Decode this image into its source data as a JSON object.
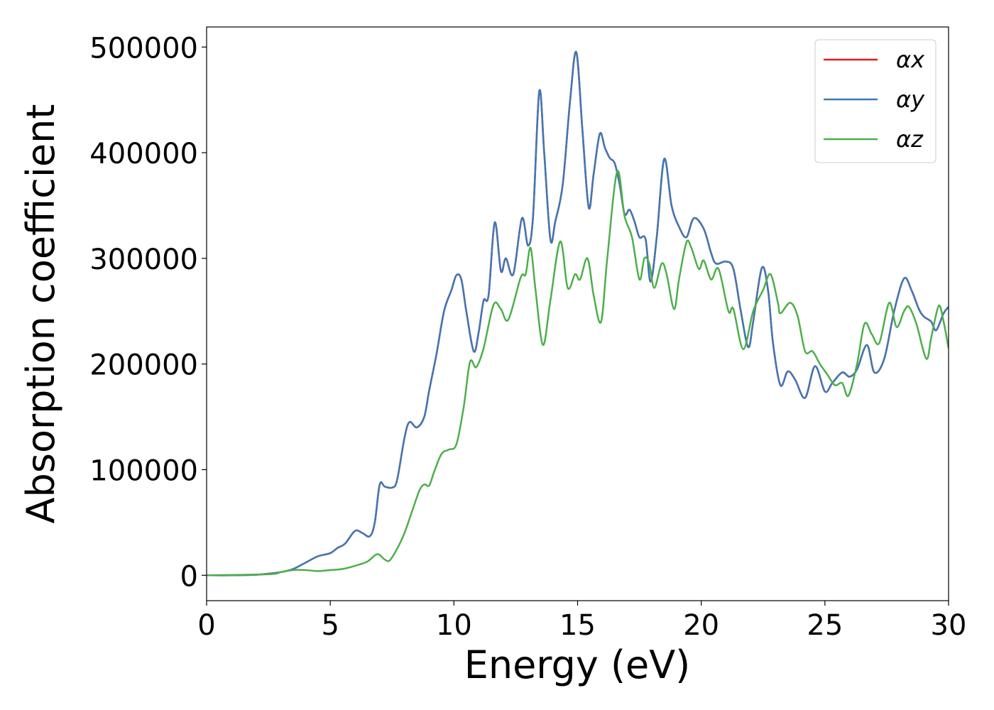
{
  "chart_data": {
    "type": "line",
    "xlabel": "Energy (eV)",
    "ylabel": "Absorption coefficient",
    "xlim": [
      0,
      30
    ],
    "ylim": [
      -24000,
      519000
    ],
    "xticks": [
      0,
      5,
      10,
      15,
      20,
      25,
      30
    ],
    "yticks": [
      0,
      100000,
      200000,
      300000,
      400000,
      500000
    ],
    "legend": "upper right",
    "series": [
      {
        "name": "αx",
        "color": "#e41a1c",
        "x": [
          0,
          1,
          2,
          2.5,
          3,
          3.5,
          4,
          4.5,
          5,
          5.3,
          5.6,
          6,
          6.3,
          6.6,
          6.8,
          7,
          7.2,
          7.5,
          7.7,
          8,
          8.2,
          8.5,
          8.8,
          9,
          9.3,
          9.6,
          9.9,
          10.1,
          10.3,
          10.5,
          10.8,
          11,
          11.2,
          11.4,
          11.65,
          11.9,
          12.1,
          12.4,
          12.75,
          13,
          13.2,
          13.45,
          13.65,
          13.9,
          14.1,
          14.4,
          14.7,
          14.95,
          15.2,
          15.45,
          15.65,
          15.9,
          16.1,
          16.3,
          16.5,
          16.7,
          16.9,
          17.1,
          17.3,
          17.5,
          17.75,
          17.95,
          18.2,
          18.5,
          18.8,
          19.1,
          19.4,
          19.7,
          20.1,
          20.4,
          20.6,
          21,
          21.3,
          21.6,
          21.9,
          22.1,
          22.45,
          22.7,
          22.9,
          23.2,
          23.5,
          23.8,
          24.2,
          24.6,
          25,
          25.3,
          25.7,
          26,
          26.3,
          26.7,
          27,
          27.4,
          27.8,
          28.2,
          28.5,
          28.8,
          29,
          29.3,
          29.5,
          29.8,
          30
        ],
        "values": [
          0,
          0,
          500,
          1500,
          3000,
          6000,
          12000,
          18000,
          21000,
          26000,
          30000,
          42000,
          40000,
          37000,
          50000,
          86000,
          84000,
          83000,
          90000,
          130000,
          145000,
          140000,
          150000,
          175000,
          210000,
          250000,
          270000,
          284000,
          280000,
          250000,
          212000,
          230000,
          260000,
          265000,
          334000,
          288000,
          300000,
          285000,
          338000,
          312000,
          340000,
          458000,
          400000,
          318000,
          335000,
          370000,
          450000,
          495000,
          420000,
          348000,
          380000,
          418000,
          405000,
          395000,
          390000,
          370000,
          342000,
          346000,
          335000,
          320000,
          318000,
          278000,
          320000,
          394000,
          350000,
          330000,
          320000,
          338000,
          328000,
          305000,
          295000,
          297000,
          290000,
          250000,
          216000,
          240000,
          291000,
          270000,
          220000,
          180000,
          193000,
          185000,
          168000,
          198000,
          174000,
          182000,
          192000,
          188000,
          195000,
          218000,
          192000,
          205000,
          250000,
          281000,
          270000,
          252000,
          245000,
          240000,
          232000,
          248000,
          254000
        ]
      },
      {
        "name": "αy",
        "color": "#3f78b5",
        "x": [
          0,
          1,
          2,
          2.5,
          3,
          3.5,
          4,
          4.5,
          5,
          5.3,
          5.6,
          6,
          6.3,
          6.6,
          6.8,
          7,
          7.2,
          7.5,
          7.7,
          8,
          8.2,
          8.5,
          8.8,
          9,
          9.3,
          9.6,
          9.9,
          10.1,
          10.3,
          10.5,
          10.8,
          11,
          11.2,
          11.4,
          11.65,
          11.9,
          12.1,
          12.4,
          12.75,
          13,
          13.2,
          13.45,
          13.65,
          13.9,
          14.1,
          14.4,
          14.7,
          14.95,
          15.2,
          15.45,
          15.65,
          15.9,
          16.1,
          16.3,
          16.5,
          16.7,
          16.9,
          17.1,
          17.3,
          17.5,
          17.75,
          17.95,
          18.2,
          18.5,
          18.8,
          19.1,
          19.4,
          19.7,
          20.1,
          20.4,
          20.6,
          21,
          21.3,
          21.6,
          21.9,
          22.1,
          22.45,
          22.7,
          22.9,
          23.2,
          23.5,
          23.8,
          24.2,
          24.6,
          25,
          25.3,
          25.7,
          26,
          26.3,
          26.7,
          27,
          27.4,
          27.8,
          28.2,
          28.5,
          28.8,
          29,
          29.3,
          29.5,
          29.8,
          30
        ],
        "values": [
          0,
          0,
          500,
          1500,
          3000,
          6000,
          12000,
          18000,
          21000,
          26000,
          30000,
          42000,
          40000,
          37000,
          50000,
          86000,
          84000,
          83000,
          90000,
          130000,
          145000,
          140000,
          150000,
          175000,
          210000,
          250000,
          270000,
          284000,
          280000,
          250000,
          212000,
          230000,
          260000,
          265000,
          334000,
          288000,
          300000,
          285000,
          338000,
          312000,
          340000,
          458000,
          400000,
          318000,
          335000,
          370000,
          450000,
          495000,
          420000,
          348000,
          380000,
          418000,
          405000,
          395000,
          390000,
          370000,
          342000,
          346000,
          335000,
          320000,
          318000,
          278000,
          320000,
          394000,
          350000,
          330000,
          320000,
          338000,
          328000,
          305000,
          295000,
          297000,
          290000,
          250000,
          216000,
          240000,
          291000,
          270000,
          220000,
          180000,
          193000,
          185000,
          168000,
          198000,
          174000,
          182000,
          192000,
          188000,
          195000,
          218000,
          192000,
          205000,
          250000,
          281000,
          270000,
          252000,
          245000,
          240000,
          232000,
          248000,
          254000
        ]
      },
      {
        "name": "αz",
        "color": "#4daf4a",
        "x": [
          0,
          2.5,
          3,
          3.5,
          4,
          4.5,
          5,
          5.5,
          6,
          6.5,
          6.9,
          7.2,
          7.4,
          7.7,
          8,
          8.3,
          8.6,
          8.8,
          9,
          9.2,
          9.5,
          9.8,
          10.1,
          10.4,
          10.65,
          10.9,
          11.2,
          11.6,
          11.9,
          12.2,
          12.7,
          12.9,
          13.1,
          13.3,
          13.6,
          13.9,
          14.3,
          14.6,
          14.9,
          15.1,
          15.4,
          15.65,
          15.95,
          16.2,
          16.6,
          16.9,
          17.2,
          17.5,
          17.7,
          17.9,
          18.1,
          18.4,
          18.6,
          18.9,
          19.1,
          19.4,
          19.6,
          19.9,
          20.1,
          20.4,
          20.7,
          21.1,
          21.3,
          21.7,
          22.1,
          22.5,
          22.8,
          23.1,
          23.2,
          23.6,
          23.9,
          24.2,
          24.5,
          24.8,
          25.1,
          25.4,
          25.7,
          25.95,
          26.3,
          26.6,
          26.9,
          27.2,
          27.6,
          27.9,
          28.2,
          28.4,
          28.7,
          29.1,
          29.3,
          29.6,
          29.8,
          30
        ],
        "values": [
          0,
          1000,
          3000,
          5000,
          5000,
          4000,
          5000,
          6000,
          9000,
          13000,
          20000,
          15000,
          14000,
          25000,
          40000,
          60000,
          80000,
          86000,
          85000,
          98000,
          115000,
          119000,
          124000,
          160000,
          202000,
          197000,
          215000,
          256000,
          252000,
          242000,
          282000,
          285000,
          310000,
          270000,
          218000,
          260000,
          316000,
          272000,
          285000,
          280000,
          300000,
          265000,
          240000,
          300000,
          382000,
          340000,
          320000,
          280000,
          300000,
          295000,
          272000,
          295000,
          285000,
          252000,
          280000,
          315000,
          310000,
          290000,
          298000,
          280000,
          290000,
          250000,
          252000,
          214000,
          250000,
          270000,
          285000,
          258000,
          248000,
          258000,
          245000,
          212000,
          212000,
          200000,
          190000,
          180000,
          182000,
          170000,
          200000,
          238000,
          228000,
          220000,
          258000,
          235000,
          250000,
          254000,
          238000,
          205000,
          225000,
          255000,
          240000,
          215000
        ]
      }
    ]
  }
}
